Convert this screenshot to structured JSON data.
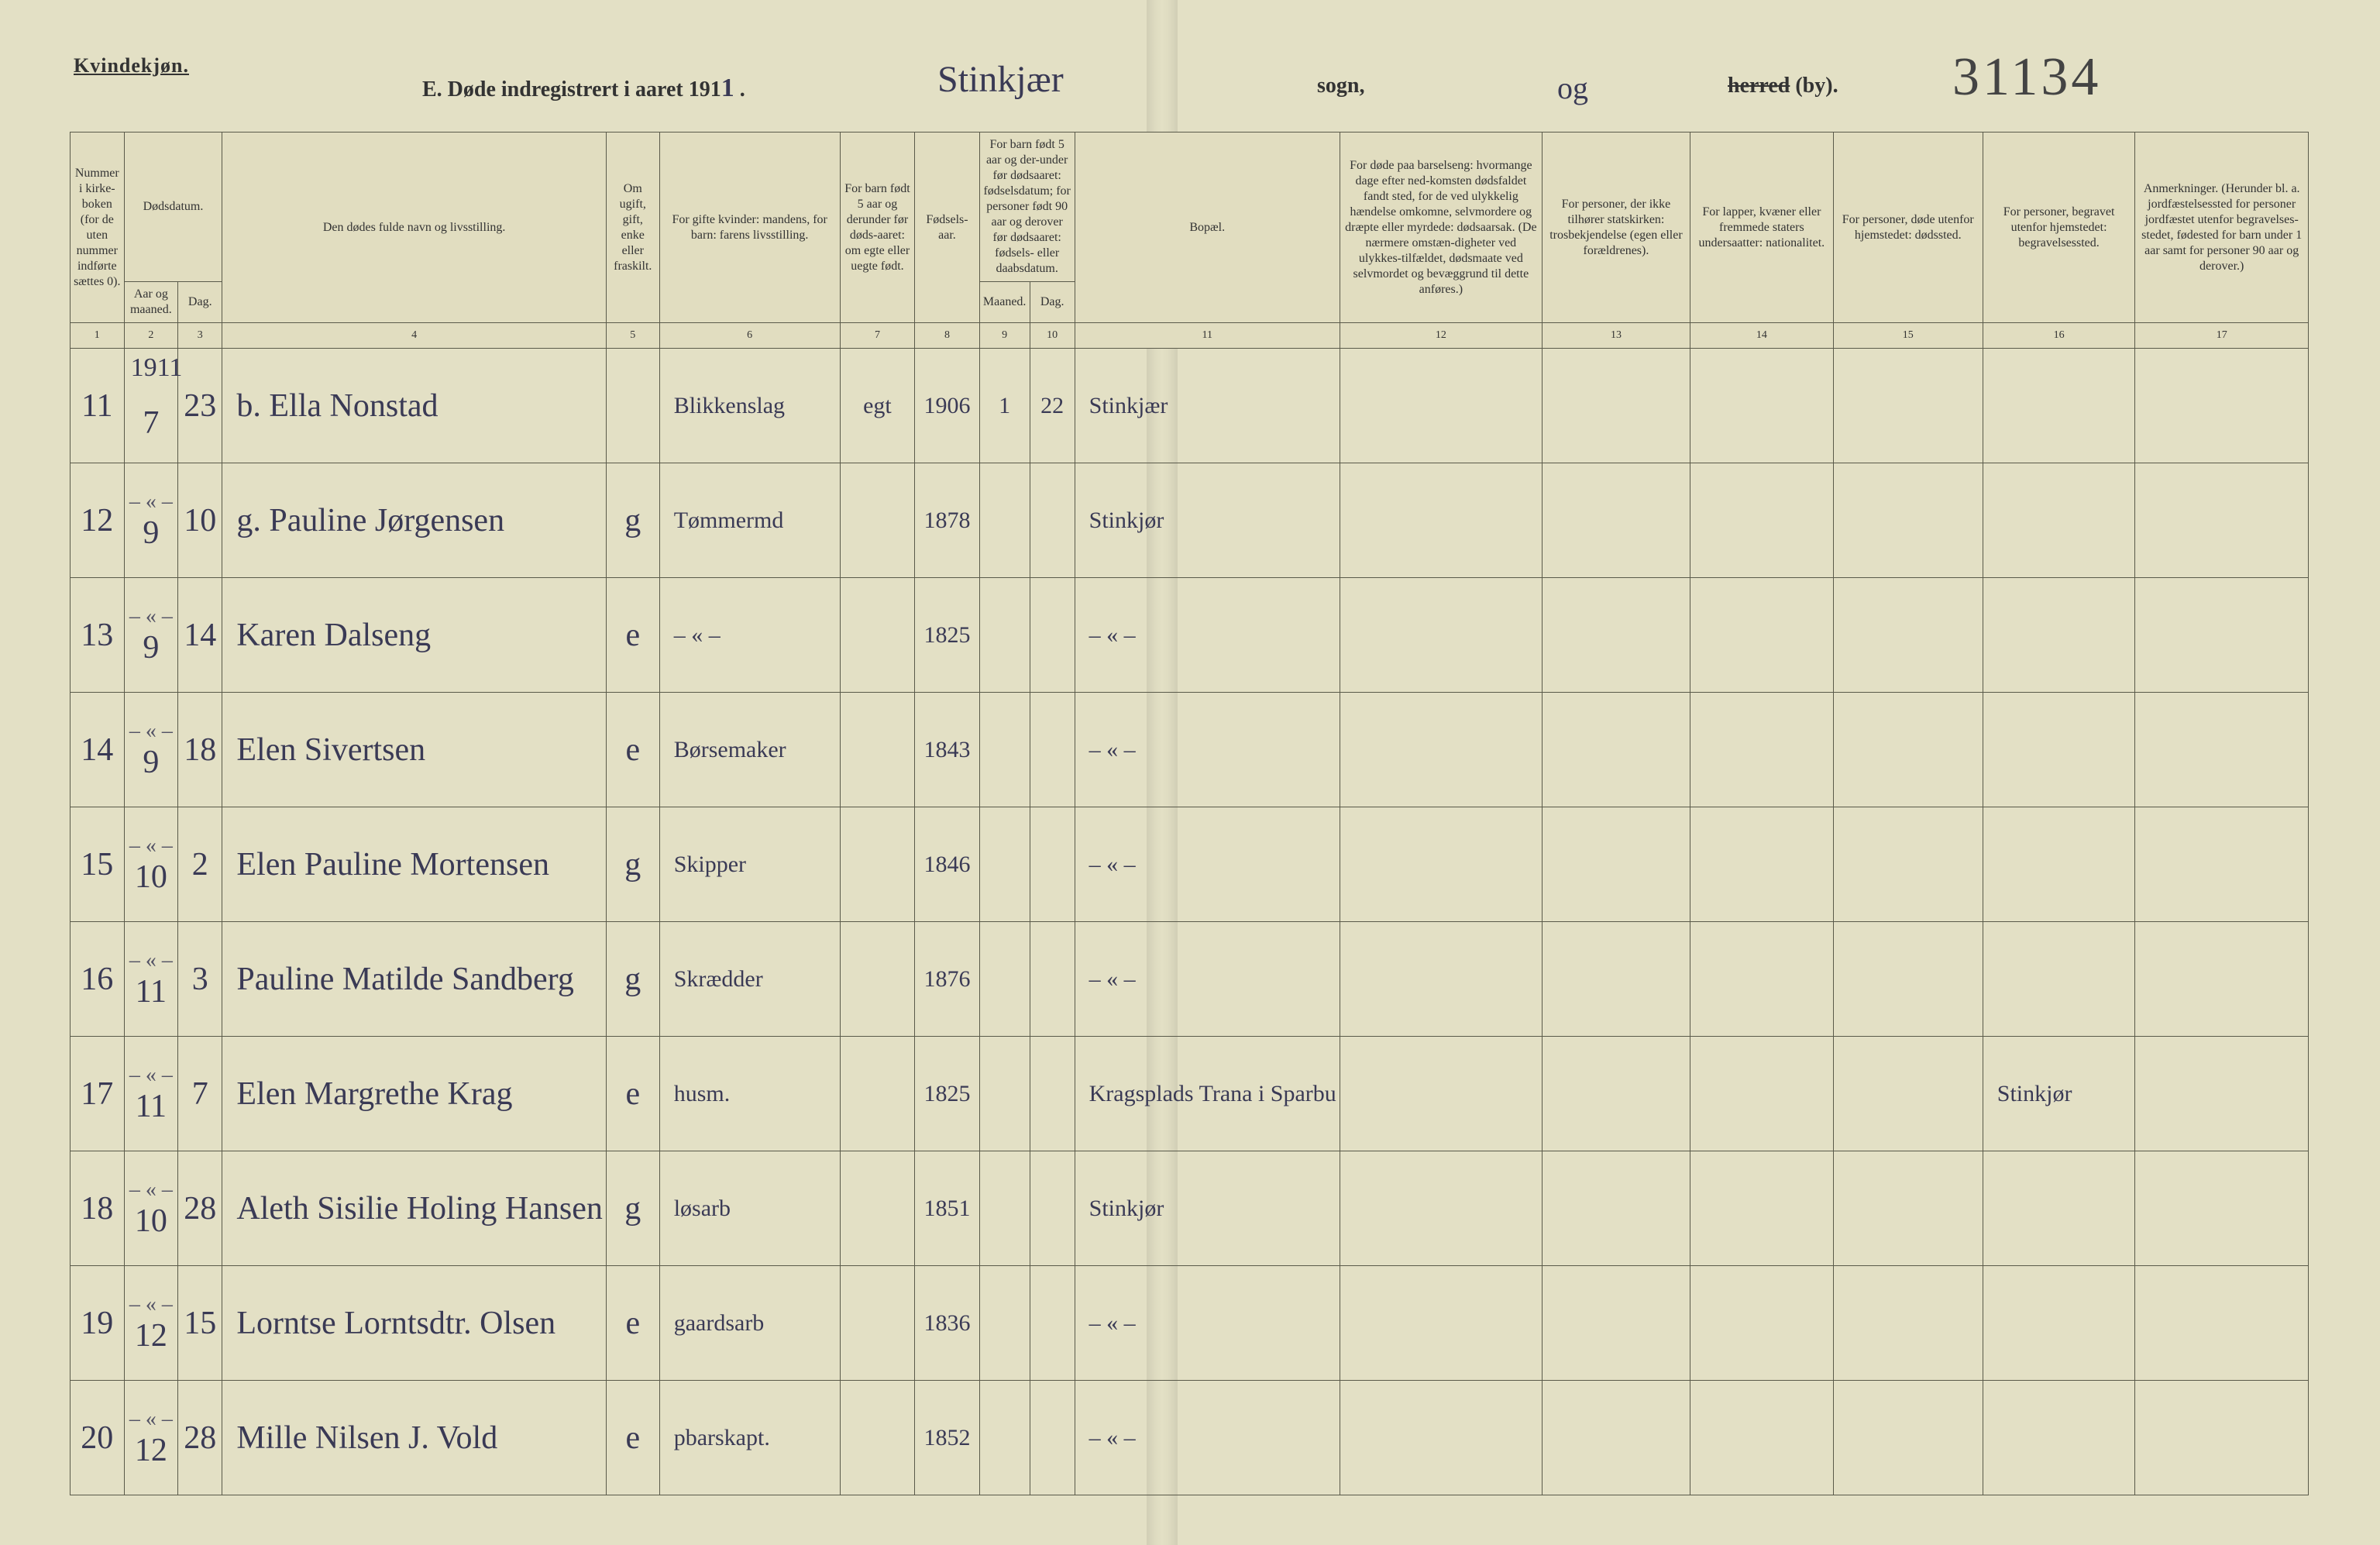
{
  "gender_label": "Kvindekjøn.",
  "title": {
    "prefix": "E.  Døde indregistrert i aaret 191",
    "year_suffix_hand": "1",
    "parish_hand": "Stinkjær",
    "sogn": "sogn,",
    "by_hand": "og",
    "herred_strike": "herred",
    "herred_suffix": " (by).",
    "code_hand": "31134"
  },
  "headers": {
    "c1": "Nummer i kirke-boken (for de uten nummer indførte sættes 0).",
    "c2_top": "Dødsdatum.",
    "c2a": "Aar og maaned.",
    "c2b": "Dag.",
    "c4": "Den dødes fulde navn og livsstilling.",
    "c5": "Om ugift, gift, enke eller fraskilt.",
    "c6": "For gifte kvinder: mandens, for barn: farens livsstilling.",
    "c7": "For barn født 5 aar og derunder før døds-aaret: om egte eller uegte født.",
    "c8": "Fødsels-aar.",
    "c9_top": "For barn født 5 aar og der-under før dødsaaret: fødselsdatum; for personer født 90 aar og derover før dødsaaret: fødsels- eller daabsdatum.",
    "c9a": "Maaned.",
    "c9b": "Dag.",
    "c11": "Bopæl.",
    "c12": "For døde paa barselseng: hvormange dage efter ned-komsten dødsfaldet fandt sted, for de ved ulykkelig hændelse omkomne, selvmordere og dræpte eller myrdede: dødsaarsak. (De nærmere omstæn-digheter ved ulykkes-tilfældet, dødsmaate ved selvmordet og bevæggrund til dette anføres.)",
    "c13": "For personer, der ikke tilhører statskirken: trosbekjendelse (egen eller forældrenes).",
    "c14": "For lapper, kvæner eller fremmede staters undersaatter: nationalitet.",
    "c15": "For personer, døde utenfor hjemstedet: dødssted.",
    "c16": "For personer, begravet utenfor hjemstedet: begravelsessted.",
    "c17": "Anmerkninger. (Herunder bl. a. jordfæstelsessted for personer jordfæstet utenfor begravelses-stedet, fødested for barn under 1 aar samt for personer 90 aar og derover.)"
  },
  "colnums": [
    "1",
    "2",
    "3",
    "4",
    "5",
    "6",
    "7",
    "8",
    "9",
    "10",
    "11",
    "12",
    "13",
    "14",
    "15",
    "16",
    "17"
  ],
  "year_inline": "1911",
  "rows": [
    {
      "n": "11",
      "m": "7",
      "d": "23",
      "name": "b. Ella Nonstad",
      "stat": "",
      "occ": "Blikkenslag",
      "e": "egt",
      "yr": "1906",
      "bm": "1",
      "bd": "22",
      "res": "Stinkjær",
      "c12": "",
      "c13": "",
      "c14": "",
      "c15": "",
      "c16": "",
      "c17": ""
    },
    {
      "n": "12",
      "m": "9",
      "d": "10",
      "name": "g. Pauline Jørgensen",
      "stat": "g",
      "occ": "Tømmermd",
      "e": "",
      "yr": "1878",
      "bm": "",
      "bd": "",
      "res": "Stinkjør",
      "c12": "",
      "c13": "",
      "c14": "",
      "c15": "",
      "c16": "",
      "c17": ""
    },
    {
      "n": "13",
      "m": "9",
      "d": "14",
      "name": "Karen Dalseng",
      "stat": "e",
      "occ": "– « –",
      "e": "",
      "yr": "1825",
      "bm": "",
      "bd": "",
      "res": "– « –",
      "c12": "",
      "c13": "",
      "c14": "",
      "c15": "",
      "c16": "",
      "c17": ""
    },
    {
      "n": "14",
      "m": "9",
      "d": "18",
      "name": "Elen Sivertsen",
      "stat": "e",
      "occ": "Børsemaker",
      "e": "",
      "yr": "1843",
      "bm": "",
      "bd": "",
      "res": "– « –",
      "c12": "",
      "c13": "",
      "c14": "",
      "c15": "",
      "c16": "",
      "c17": ""
    },
    {
      "n": "15",
      "m": "10",
      "d": "2",
      "name": "Elen Pauline Mortensen",
      "stat": "g",
      "occ": "Skipper",
      "e": "",
      "yr": "1846",
      "bm": "",
      "bd": "",
      "res": "– « –",
      "c12": "",
      "c13": "",
      "c14": "",
      "c15": "",
      "c16": "",
      "c17": ""
    },
    {
      "n": "16",
      "m": "11",
      "d": "3",
      "name": "Pauline Matilde Sandberg",
      "stat": "g",
      "occ": "Skrædder",
      "e": "",
      "yr": "1876",
      "bm": "",
      "bd": "",
      "res": "– « –",
      "c12": "",
      "c13": "",
      "c14": "",
      "c15": "",
      "c16": "",
      "c17": ""
    },
    {
      "n": "17",
      "m": "11",
      "d": "7",
      "name": "Elen Margrethe Krag",
      "stat": "e",
      "occ": "husm.",
      "e": "",
      "yr": "1825",
      "bm": "",
      "bd": "",
      "res": "Kragsplads Trana i Sparbu",
      "c12": "",
      "c13": "",
      "c14": "",
      "c15": "",
      "c16": "Stinkjør",
      "c17": ""
    },
    {
      "n": "18",
      "m": "10",
      "d": "28",
      "name": "Aleth Sisilie Holing Hansen",
      "stat": "g",
      "occ": "løsarb",
      "e": "",
      "yr": "1851",
      "bm": "",
      "bd": "",
      "res": "Stinkjør",
      "c12": "",
      "c13": "",
      "c14": "",
      "c15": "",
      "c16": "",
      "c17": ""
    },
    {
      "n": "19",
      "m": "12",
      "d": "15",
      "name": "Lorntse Lorntsdtr. Olsen",
      "stat": "e",
      "occ": "gaardsarb",
      "e": "",
      "yr": "1836",
      "bm": "",
      "bd": "",
      "res": "– « –",
      "c12": "",
      "c13": "",
      "c14": "",
      "c15": "",
      "c16": "",
      "c17": ""
    },
    {
      "n": "20",
      "m": "12",
      "d": "28",
      "name": "Mille Nilsen J. Vold",
      "stat": "e",
      "occ": "pbarskapt.",
      "e": "",
      "yr": "1852",
      "bm": "",
      "bd": "",
      "res": "– « –",
      "c12": "",
      "c13": "",
      "c14": "",
      "c15": "",
      "c16": "",
      "c17": ""
    }
  ]
}
